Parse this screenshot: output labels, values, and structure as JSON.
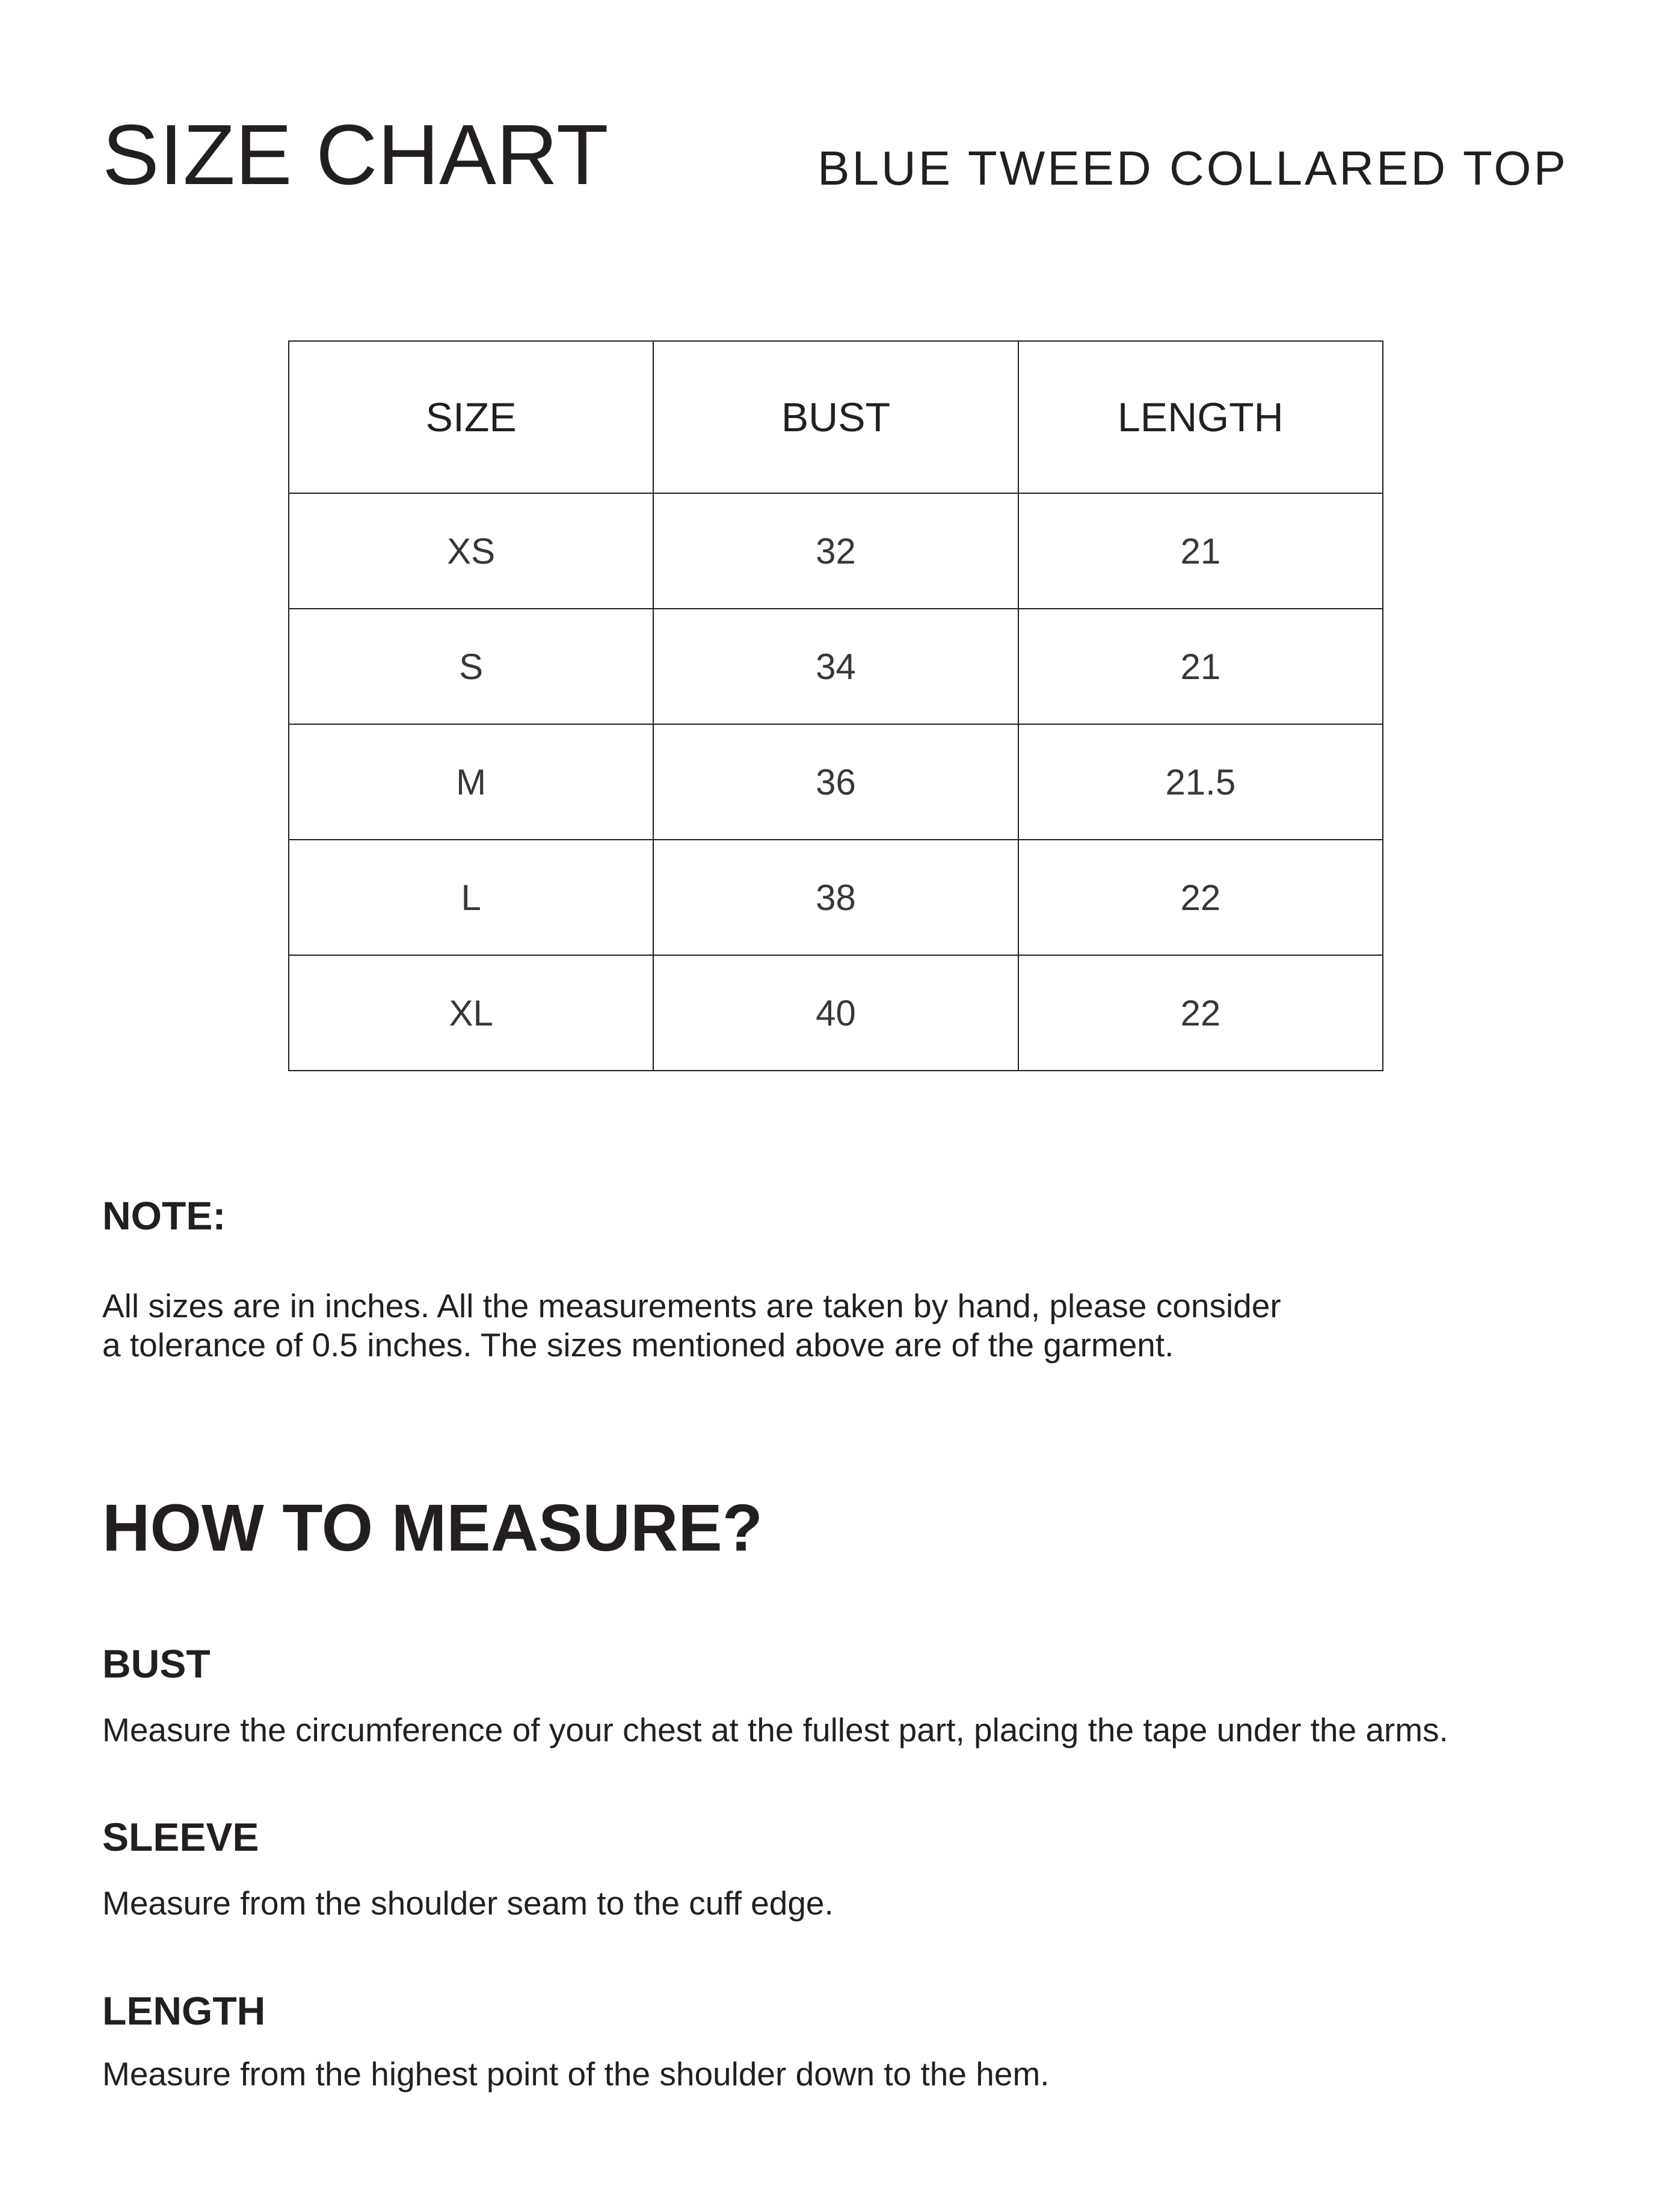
{
  "header": {
    "title": "SIZE CHART",
    "product": "BLUE TWEED COLLARED TOP"
  },
  "table": {
    "columns": [
      "SIZE",
      "BUST",
      "LENGTH"
    ],
    "rows": [
      [
        "XS",
        "32",
        "21"
      ],
      [
        "S",
        "34",
        "21"
      ],
      [
        "M",
        "36",
        "21.5"
      ],
      [
        "L",
        "38",
        "22"
      ],
      [
        "XL",
        "40",
        "22"
      ]
    ]
  },
  "note": {
    "heading": "NOTE:",
    "line1": "All sizes are in inches. All the measurements are taken by hand, please consider",
    "line2": "a tolerance of 0.5 inches. The sizes mentioned above are of the garment."
  },
  "how_to_measure": {
    "heading": "HOW TO MEASURE?",
    "items": [
      {
        "title": "BUST",
        "text": "Measure the circumference of your chest at the fullest part, placing the tape under the arms."
      },
      {
        "title": "SLEEVE",
        "text": "Measure from the shoulder seam to the cuff edge."
      },
      {
        "title": "LENGTH",
        "text": "Measure from the highest point of the shoulder down to the hem."
      }
    ]
  },
  "colors": {
    "text": "#231f20",
    "background": "#ffffff"
  }
}
